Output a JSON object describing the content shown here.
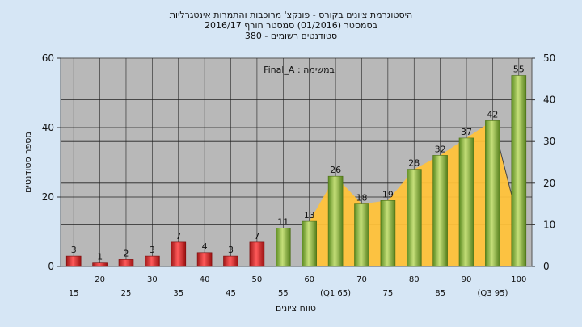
{
  "chart_data": {
    "type": "bar",
    "title_lines": [
      "היסטוגרמת ציונים בקורס - פונקצ' מרוכבות והתמרות אינטגרליות",
      "בסמסטר  (01/2016)  סמסטר חורף  2016/17",
      "סטודנטים רשומים - 380"
    ],
    "subtitle": "במשימה : Final_A",
    "xlabel": "טווח ציונים",
    "ylabel": "מספר סטודנטים",
    "categories": [
      "15",
      "20",
      "25",
      "30",
      "35",
      "40",
      "45",
      "50",
      "55",
      "60",
      "(Q1 65)",
      "70",
      "75",
      "80",
      "85",
      "90",
      "(Q3 95)",
      "100"
    ],
    "values": [
      3,
      1,
      2,
      3,
      7,
      4,
      3,
      7,
      11,
      13,
      26,
      18,
      19,
      28,
      32,
      37,
      42,
      55
    ],
    "value_labels": [
      "3",
      "1",
      "2",
      "3",
      "7",
      "4",
      "3",
      "7",
      "11",
      "13",
      "26",
      "18",
      "19",
      "28",
      "32",
      "37",
      "42",
      "55"
    ],
    "ylim": [
      0,
      60
    ],
    "yticks": [
      "0",
      "20",
      "40",
      "60"
    ],
    "y2lim": [
      0,
      50
    ],
    "y2ticks": [
      "0",
      "10",
      "20",
      "30",
      "40",
      "50"
    ],
    "grid": true,
    "fail_color": "#e02828",
    "pass_color": "#8fbc3a",
    "area_color": "#ffc23a",
    "plot_bg": "#b8b8b8"
  }
}
